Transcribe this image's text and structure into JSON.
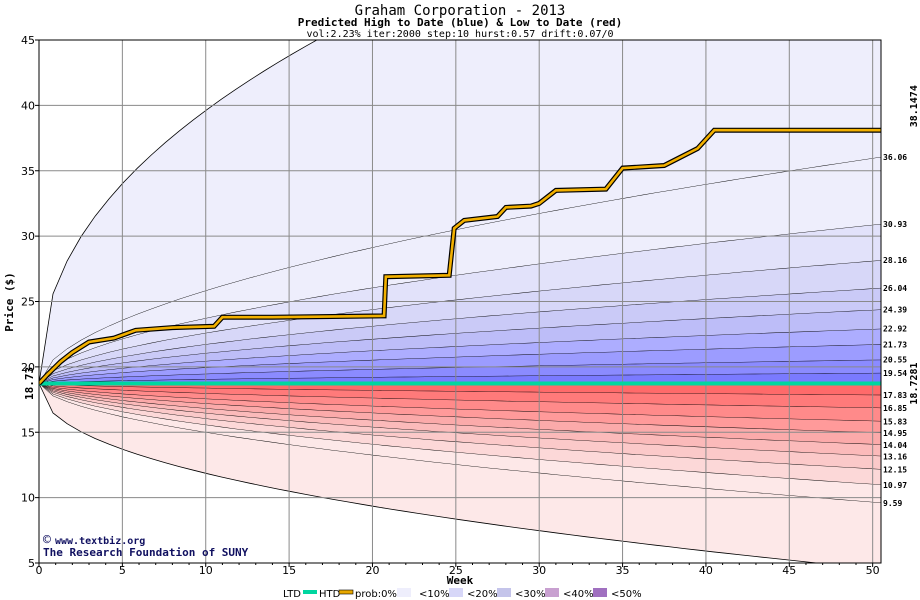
{
  "chart_data": {
    "type": "area",
    "title": "Graham Corporation - 2013",
    "subtitle": "Predicted High to Date (blue) &  Low to Date (red)",
    "params": "vol:2.23% iter:2000 step:10 hurst:0.57 drift:0.07/0",
    "xlabel": "Week",
    "ylabel": "Price ($)",
    "xlim": [
      0,
      50.5
    ],
    "ylim": [
      5,
      45
    ],
    "xticks": [
      0,
      5,
      10,
      15,
      20,
      25,
      30,
      35,
      40,
      45,
      50
    ],
    "yticks": [
      5,
      10,
      15,
      20,
      25,
      30,
      35,
      40,
      45
    ],
    "start_price": 18.73,
    "start_label": "18.73",
    "actual_high_label": "38.1474",
    "actual_low_label": "18.7281",
    "actual_low_value": 18.7281,
    "high_quantiles": [
      {
        "label": "19.54",
        "value": 19.54
      },
      {
        "label": "20.55",
        "value": 20.55
      },
      {
        "label": "21.73",
        "value": 21.73
      },
      {
        "label": "22.92",
        "value": 22.92
      },
      {
        "label": "24.39",
        "value": 24.39
      },
      {
        "label": "26.04",
        "value": 26.04
      },
      {
        "label": "28.16",
        "value": 28.16
      },
      {
        "label": "30.93",
        "value": 30.93
      },
      {
        "label": "36.06",
        "value": 36.06
      },
      {
        "label": "",
        "value": 62
      }
    ],
    "low_quantiles": [
      {
        "label": "17.83",
        "value": 17.83
      },
      {
        "label": "16.85",
        "value": 16.85
      },
      {
        "label": "15.83",
        "value": 15.83
      },
      {
        "label": "14.95",
        "value": 14.95
      },
      {
        "label": "14.04",
        "value": 14.04
      },
      {
        "label": "13.16",
        "value": 13.16
      },
      {
        "label": "12.15",
        "value": 12.15
      },
      {
        "label": "10.97",
        "value": 10.97
      },
      {
        "label": "9.59",
        "value": 9.59
      },
      {
        "label": "",
        "value": 4.5
      }
    ],
    "band_colors_high": [
      "#7a7aff",
      "#8b8bff",
      "#9c9cff",
      "#adadff",
      "#bdbdf8",
      "#cacaf7",
      "#d7d7f8",
      "#e2e2fa",
      "#eeeefc"
    ],
    "band_colors_low": [
      "#ff6a6a",
      "#ff7a7a",
      "#ff8a8a",
      "#ff9a9a",
      "#fbaaaa",
      "#fbbaba",
      "#fbc9c9",
      "#fcd8d8",
      "#fde8e8"
    ],
    "high_to_date": [
      [
        0,
        18.73
      ],
      [
        0.5,
        19.4
      ],
      [
        1.3,
        20.4
      ],
      [
        2,
        21.1
      ],
      [
        3,
        21.9
      ],
      [
        4.5,
        22.2
      ],
      [
        5.8,
        22.8
      ],
      [
        8,
        23.0
      ],
      [
        10.5,
        23.1
      ],
      [
        11,
        23.8
      ],
      [
        14,
        23.8
      ],
      [
        20.7,
        23.9
      ],
      [
        20.8,
        26.9
      ],
      [
        24.6,
        27.0
      ],
      [
        24.9,
        30.6
      ],
      [
        25.5,
        31.2
      ],
      [
        27.5,
        31.5
      ],
      [
        28,
        32.2
      ],
      [
        29.5,
        32.3
      ],
      [
        30,
        32.5
      ],
      [
        31,
        33.5
      ],
      [
        34,
        33.6
      ],
      [
        35,
        35.2
      ],
      [
        37.5,
        35.4
      ],
      [
        39.5,
        36.7
      ],
      [
        40.5,
        38.1
      ],
      [
        50.5,
        38.1
      ]
    ],
    "low_to_date": [
      [
        0,
        18.73
      ],
      [
        50.5,
        18.73
      ]
    ]
  },
  "legend": {
    "ltd_label": "LTD",
    "htd_label": "HTD",
    "prob_label": "prob:0%",
    "bins": [
      "<10%",
      "<20%",
      "<30%",
      "<40%",
      "<50%"
    ],
    "ltd_color": "#00d6a0",
    "htd_color": "#e8a800"
  },
  "watermark": {
    "line1": "www.textbiz.org",
    "line2": "The Research Foundation of SUNY"
  }
}
